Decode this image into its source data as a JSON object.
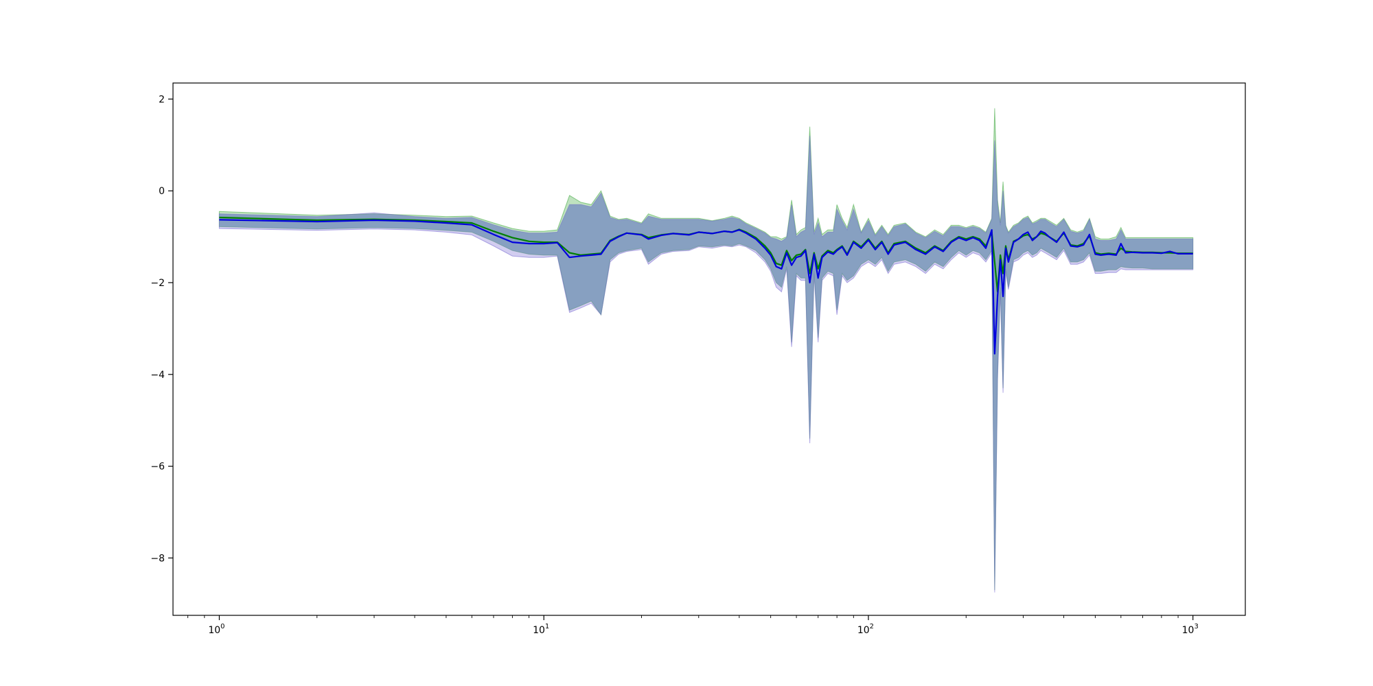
{
  "chart_data": {
    "type": "line",
    "title": "",
    "xlabel": "",
    "ylabel": "",
    "x_scale": "log",
    "xlim": [
      0.72,
      1450
    ],
    "ylim": [
      -9.25,
      2.35
    ],
    "grid": false,
    "legend": "none",
    "x_ticks": [
      {
        "value": 1,
        "base": "10",
        "exp": "0"
      },
      {
        "value": 10,
        "base": "10",
        "exp": "1"
      },
      {
        "value": 100,
        "base": "10",
        "exp": "2"
      },
      {
        "value": 1000,
        "base": "10",
        "exp": "3"
      }
    ],
    "y_ticks": [
      {
        "value": 2,
        "label": "2"
      },
      {
        "value": 0,
        "label": "0"
      },
      {
        "value": -2,
        "label": "−2"
      },
      {
        "value": -4,
        "label": "−4"
      },
      {
        "value": -6,
        "label": "−6"
      },
      {
        "value": -8,
        "label": "−8"
      }
    ],
    "colors": {
      "green_line": "#008000",
      "blue_line": "#0000dd",
      "green_band": "#2ca02c",
      "blue_band": "#6a5acd",
      "overlap_band": "#6f8cc0"
    },
    "series": [
      {
        "x": [
          1,
          2,
          3,
          4,
          5,
          6,
          7,
          8,
          9,
          10,
          11,
          12,
          13,
          14,
          15,
          16,
          17,
          18,
          20,
          21,
          23,
          25,
          28,
          30,
          33,
          36,
          38,
          40,
          42,
          45,
          48,
          50,
          52,
          54,
          56,
          58,
          60,
          62,
          64,
          66,
          68,
          70,
          72,
          75,
          78,
          80,
          83,
          86,
          90,
          95,
          100,
          105,
          110,
          115,
          120,
          130,
          140,
          150,
          160,
          170,
          180,
          190,
          200,
          210,
          220,
          230,
          240,
          245,
          250,
          255,
          260,
          265,
          270,
          280,
          290,
          300,
          310,
          320,
          330,
          340,
          350,
          360,
          380,
          400,
          420,
          440,
          460,
          480,
          500,
          520,
          550,
          580,
          600,
          620,
          650,
          700,
          750,
          800,
          850,
          900,
          950,
          1000
        ],
        "y": [
          -0.58,
          -0.64,
          -0.62,
          -0.64,
          -0.67,
          -0.7,
          -0.88,
          -1.02,
          -1.1,
          -1.12,
          -1.12,
          -1.35,
          -1.4,
          -1.38,
          -1.36,
          -1.08,
          -0.99,
          -0.92,
          -0.95,
          -1.02,
          -0.96,
          -0.93,
          -0.95,
          -0.9,
          -0.93,
          -0.88,
          -0.9,
          -0.84,
          -0.9,
          -1.02,
          -1.2,
          -1.35,
          -1.58,
          -1.62,
          -1.3,
          -1.52,
          -1.4,
          -1.38,
          -1.28,
          -1.8,
          -1.35,
          -1.7,
          -1.42,
          -1.3,
          -1.35,
          -1.28,
          -1.2,
          -1.38,
          -1.1,
          -1.22,
          -1.05,
          -1.25,
          -1.1,
          -1.35,
          -1.15,
          -1.1,
          -1.25,
          -1.35,
          -1.2,
          -1.3,
          -1.1,
          -1.0,
          -1.05,
          -1.0,
          -1.05,
          -1.2,
          -0.9,
          -1.55,
          -2.2,
          -1.4,
          -1.8,
          -1.2,
          -1.5,
          -1.1,
          -1.05,
          -0.98,
          -0.95,
          -1.05,
          -1.0,
          -0.92,
          -0.95,
          -1.0,
          -1.1,
          -0.92,
          -1.18,
          -1.2,
          -1.15,
          -0.98,
          -1.35,
          -1.38,
          -1.36,
          -1.38,
          -1.25,
          -1.32,
          -1.33,
          -1.34,
          -1.34,
          -1.35,
          -1.35,
          -1.36,
          -1.36,
          -1.36
        ],
        "upper": [
          -0.45,
          -0.53,
          -0.5,
          -0.53,
          -0.56,
          -0.55,
          -0.7,
          -0.82,
          -0.88,
          -0.88,
          -0.85,
          -0.1,
          -0.25,
          -0.3,
          0.0,
          -0.55,
          -0.62,
          -0.6,
          -0.7,
          -0.5,
          -0.6,
          -0.6,
          -0.6,
          -0.6,
          -0.65,
          -0.6,
          -0.55,
          -0.6,
          -0.7,
          -0.8,
          -0.9,
          -1.0,
          -1.0,
          -1.05,
          -1.0,
          -0.2,
          -0.95,
          -0.85,
          -0.8,
          1.4,
          -0.9,
          -0.6,
          -0.95,
          -0.85,
          -0.85,
          -0.3,
          -0.6,
          -0.8,
          -0.3,
          -0.9,
          -0.6,
          -0.95,
          -0.75,
          -0.95,
          -0.75,
          -0.7,
          -0.9,
          -1.0,
          -0.85,
          -0.95,
          -0.75,
          -0.75,
          -0.8,
          -0.75,
          -0.8,
          -0.9,
          -0.6,
          1.8,
          -0.2,
          -0.7,
          0.2,
          -0.75,
          -0.9,
          -0.75,
          -0.7,
          -0.6,
          -0.55,
          -0.7,
          -0.65,
          -0.6,
          -0.6,
          -0.65,
          -0.75,
          -0.6,
          -0.85,
          -0.9,
          -0.85,
          -0.6,
          -1.0,
          -1.05,
          -1.05,
          -1.0,
          -0.8,
          -1.02,
          -1.02,
          -1.02,
          -1.02,
          -1.02,
          -1.02,
          -1.02,
          -1.02,
          -1.02
        ],
        "lower": [
          -0.78,
          -0.83,
          -0.8,
          -0.82,
          -0.86,
          -0.9,
          -1.1,
          -1.3,
          -1.38,
          -1.4,
          -1.4,
          -2.6,
          -2.5,
          -2.4,
          -2.7,
          -1.5,
          -1.35,
          -1.3,
          -1.25,
          -1.55,
          -1.35,
          -1.3,
          -1.28,
          -1.2,
          -1.22,
          -1.18,
          -1.2,
          -1.15,
          -1.2,
          -1.3,
          -1.5,
          -1.7,
          -2.0,
          -2.1,
          -1.65,
          -3.3,
          -1.8,
          -1.9,
          -1.9,
          -5.4,
          -1.75,
          -3.2,
          -1.9,
          -1.75,
          -1.8,
          -2.6,
          -1.8,
          -1.95,
          -1.85,
          -1.6,
          -1.5,
          -1.6,
          -1.45,
          -1.75,
          -1.55,
          -1.5,
          -1.6,
          -1.75,
          -1.55,
          -1.65,
          -1.45,
          -1.3,
          -1.4,
          -1.3,
          -1.35,
          -1.5,
          -1.3,
          -8.7,
          -4.0,
          -2.1,
          -4.3,
          -1.7,
          -2.1,
          -1.5,
          -1.45,
          -1.35,
          -1.3,
          -1.4,
          -1.35,
          -1.25,
          -1.3,
          -1.35,
          -1.45,
          -1.25,
          -1.55,
          -1.55,
          -1.5,
          -1.35,
          -1.75,
          -1.75,
          -1.72,
          -1.72,
          -1.65,
          -1.67,
          -1.68,
          -1.68,
          -1.7,
          -1.7,
          -1.7,
          -1.7,
          -1.7,
          -1.7
        ]
      },
      {
        "x": [
          1,
          2,
          3,
          4,
          5,
          6,
          7,
          8,
          9,
          10,
          11,
          12,
          13,
          14,
          15,
          16,
          17,
          18,
          20,
          21,
          23,
          25,
          28,
          30,
          33,
          36,
          38,
          40,
          42,
          45,
          48,
          50,
          52,
          54,
          56,
          58,
          60,
          62,
          64,
          66,
          68,
          70,
          72,
          75,
          78,
          80,
          83,
          86,
          90,
          95,
          100,
          105,
          110,
          115,
          120,
          130,
          140,
          150,
          160,
          170,
          180,
          190,
          200,
          210,
          220,
          230,
          240,
          245,
          250,
          255,
          260,
          265,
          270,
          280,
          290,
          300,
          310,
          320,
          330,
          340,
          350,
          360,
          380,
          400,
          420,
          440,
          460,
          480,
          500,
          520,
          550,
          580,
          600,
          620,
          650,
          700,
          750,
          800,
          850,
          900,
          950,
          1000
        ],
        "y": [
          -0.63,
          -0.67,
          -0.64,
          -0.66,
          -0.7,
          -0.74,
          -0.95,
          -1.12,
          -1.15,
          -1.15,
          -1.13,
          -1.45,
          -1.42,
          -1.4,
          -1.38,
          -1.1,
          -1.0,
          -0.92,
          -0.96,
          -1.05,
          -0.97,
          -0.93,
          -0.96,
          -0.9,
          -0.93,
          -0.88,
          -0.9,
          -0.85,
          -0.92,
          -1.05,
          -1.25,
          -1.4,
          -1.65,
          -1.7,
          -1.35,
          -1.62,
          -1.45,
          -1.42,
          -1.3,
          -2.0,
          -1.38,
          -1.9,
          -1.45,
          -1.33,
          -1.38,
          -1.3,
          -1.22,
          -1.4,
          -1.12,
          -1.25,
          -1.07,
          -1.28,
          -1.12,
          -1.38,
          -1.18,
          -1.12,
          -1.28,
          -1.38,
          -1.22,
          -1.32,
          -1.12,
          -1.02,
          -1.08,
          -1.02,
          -1.08,
          -1.25,
          -0.85,
          -3.55,
          -2.3,
          -1.5,
          -2.3,
          -1.25,
          -1.55,
          -1.12,
          -1.05,
          -0.95,
          -0.9,
          -1.08,
          -1.0,
          -0.88,
          -0.92,
          -1.0,
          -1.12,
          -0.9,
          -1.2,
          -1.22,
          -1.18,
          -0.95,
          -1.38,
          -1.4,
          -1.38,
          -1.4,
          -1.15,
          -1.35,
          -1.34,
          -1.35,
          -1.35,
          -1.36,
          -1.32,
          -1.37,
          -1.37,
          -1.37
        ],
        "upper": [
          -0.5,
          -0.56,
          -0.48,
          -0.56,
          -0.6,
          -0.58,
          -0.74,
          -0.86,
          -0.92,
          -0.92,
          -0.9,
          -0.3,
          -0.3,
          -0.35,
          -0.05,
          -0.58,
          -0.64,
          -0.62,
          -0.72,
          -0.55,
          -0.62,
          -0.62,
          -0.62,
          -0.62,
          -0.66,
          -0.62,
          -0.58,
          -0.62,
          -0.72,
          -0.82,
          -0.92,
          -1.02,
          -1.05,
          -1.1,
          -1.02,
          -0.3,
          -1.0,
          -0.9,
          -0.85,
          1.2,
          -0.95,
          -0.7,
          -1.0,
          -0.9,
          -0.9,
          -0.4,
          -0.65,
          -0.85,
          -0.4,
          -0.92,
          -0.65,
          -0.98,
          -0.78,
          -0.98,
          -0.78,
          -0.72,
          -0.92,
          -1.02,
          -0.88,
          -0.98,
          -0.78,
          -0.78,
          -0.82,
          -0.78,
          -0.82,
          -0.92,
          -0.62,
          1.1,
          -0.3,
          -0.75,
          0.0,
          -0.78,
          -0.92,
          -0.78,
          -0.72,
          -0.62,
          -0.58,
          -0.72,
          -0.68,
          -0.62,
          -0.62,
          -0.68,
          -0.78,
          -0.62,
          -0.88,
          -0.92,
          -0.88,
          -0.62,
          -1.05,
          -1.08,
          -1.08,
          -1.05,
          -0.85,
          -1.05,
          -1.05,
          -1.05,
          -1.05,
          -1.05,
          -1.05,
          -1.05,
          -1.05,
          -1.05
        ],
        "lower": [
          -0.82,
          -0.86,
          -0.83,
          -0.85,
          -0.9,
          -0.96,
          -1.2,
          -1.42,
          -1.45,
          -1.45,
          -1.42,
          -2.65,
          -2.55,
          -2.45,
          -2.7,
          -1.55,
          -1.38,
          -1.32,
          -1.28,
          -1.6,
          -1.38,
          -1.32,
          -1.3,
          -1.22,
          -1.25,
          -1.2,
          -1.22,
          -1.18,
          -1.22,
          -1.35,
          -1.55,
          -1.75,
          -2.1,
          -2.2,
          -1.7,
          -3.4,
          -1.85,
          -1.95,
          -1.95,
          -5.5,
          -1.8,
          -3.3,
          -1.95,
          -1.8,
          -1.85,
          -2.7,
          -1.85,
          -2.0,
          -1.9,
          -1.65,
          -1.55,
          -1.65,
          -1.5,
          -1.8,
          -1.6,
          -1.55,
          -1.65,
          -1.8,
          -1.6,
          -1.7,
          -1.5,
          -1.35,
          -1.45,
          -1.35,
          -1.4,
          -1.55,
          -1.35,
          -8.75,
          -4.1,
          -2.2,
          -4.4,
          -1.75,
          -2.15,
          -1.55,
          -1.5,
          -1.4,
          -1.35,
          -1.45,
          -1.4,
          -1.3,
          -1.35,
          -1.4,
          -1.5,
          -1.3,
          -1.6,
          -1.6,
          -1.55,
          -1.4,
          -1.8,
          -1.8,
          -1.78,
          -1.78,
          -1.7,
          -1.72,
          -1.72,
          -1.72,
          -1.72,
          -1.72,
          -1.72,
          -1.72,
          -1.72,
          -1.72
        ]
      }
    ]
  }
}
